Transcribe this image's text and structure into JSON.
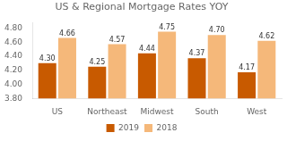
{
  "chart_data": {
    "type": "bar",
    "title": "US & Regional Mortgage Rates YOY",
    "categories": [
      "US",
      "Northeast",
      "Midwest",
      "South",
      "West"
    ],
    "series": [
      {
        "name": "2019",
        "color": "#C85A00",
        "values": [
          4.3,
          4.25,
          4.44,
          4.37,
          4.17
        ],
        "value_labels": [
          "4.30",
          "4.25",
          "4.44",
          "4.37",
          "4.17"
        ]
      },
      {
        "name": "2018",
        "color": "#F5B87A",
        "values": [
          4.66,
          4.57,
          4.75,
          4.7,
          4.62
        ],
        "value_labels": [
          "4.66",
          "4.57",
          "4.75",
          "4.70",
          "4.62"
        ]
      }
    ],
    "ylim": [
      3.8,
      4.88
    ],
    "yticks": [
      {
        "value": 3.8,
        "label": "3.80"
      },
      {
        "value": 4,
        "label": "4.00"
      },
      {
        "value": 4.2,
        "label": "4.20"
      },
      {
        "value": 4.4,
        "label": "4.40"
      },
      {
        "value": 4.6,
        "label": "4.60"
      },
      {
        "value": 4.8,
        "label": "4.80"
      }
    ],
    "grid": false,
    "legend": "bottom",
    "data_labels": true
  }
}
